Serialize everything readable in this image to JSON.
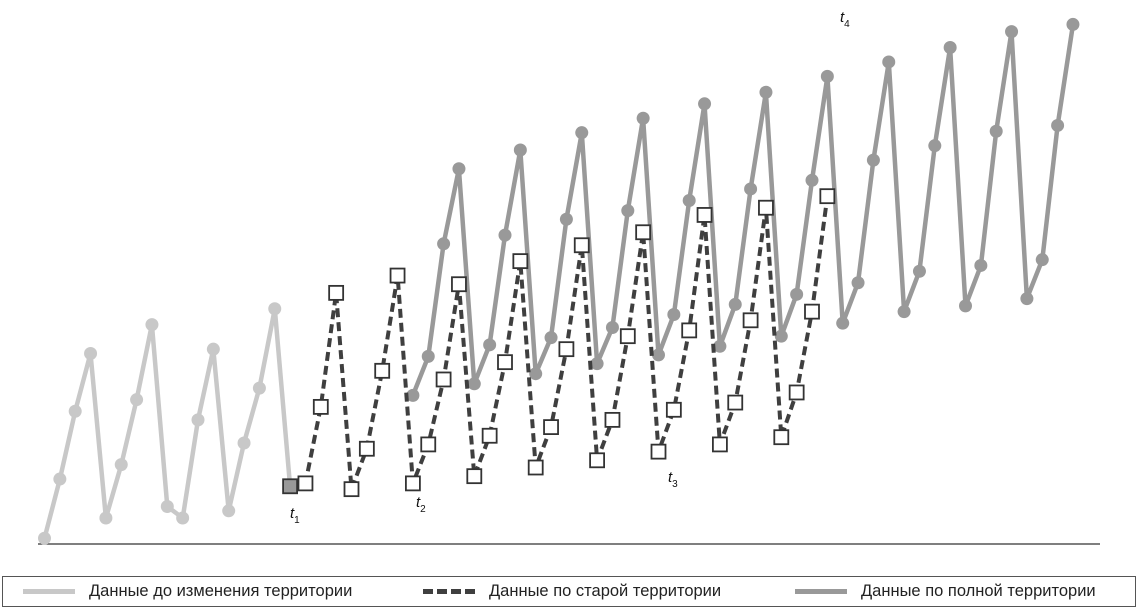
{
  "chart_data": {
    "type": "line",
    "series": [
      {
        "name": "Данные до изменения территории",
        "color": "#c8c8c8",
        "style": "solid-circle",
        "values": [
          0.4,
          4.5,
          9.2,
          13.2,
          1.8,
          5.5,
          10.0,
          15.2,
          2.6,
          1.8,
          8.6,
          13.5,
          2.3,
          7.0,
          10.8,
          16.3,
          4.0
        ]
      },
      {
        "name": "Данные по старой территории",
        "color": "#3f3f3f",
        "style": "dashed-square",
        "values": [
          4.0,
          4.2,
          9.5,
          17.4,
          3.8,
          6.6,
          12.0,
          18.6,
          4.2,
          6.9,
          11.4,
          18.0,
          4.7,
          7.5,
          12.6,
          19.6,
          5.3,
          8.1,
          13.5,
          20.7,
          5.8,
          8.6,
          14.4,
          21.6,
          6.4,
          9.3,
          14.8,
          22.8,
          6.9,
          9.8,
          15.5,
          23.3,
          7.4,
          10.5,
          16.1,
          24.1
        ]
      },
      {
        "name": "Данные по полной территории",
        "color": "#999999",
        "style": "solid-circle",
        "values": [
          10.3,
          13.0,
          20.8,
          26.0,
          11.1,
          13.8,
          21.4,
          27.3,
          11.8,
          14.3,
          22.5,
          28.5,
          12.5,
          15.0,
          23.1,
          29.5,
          13.1,
          15.9,
          23.8,
          30.5,
          13.7,
          16.6,
          24.6,
          31.3,
          14.4,
          17.3,
          25.2,
          32.4,
          15.3,
          18.1,
          26.6,
          33.4,
          16.1,
          18.9,
          27.6,
          34.4,
          16.5,
          19.3,
          28.6,
          35.5,
          17.0,
          19.7,
          29.0,
          36.0
        ]
      }
    ],
    "annotations": [
      "t",
      "1",
      "t",
      "2",
      "t",
      "3",
      "t",
      "4"
    ],
    "ylim": [
      0,
      37
    ],
    "grid": false,
    "legend_position": "bottom"
  }
}
